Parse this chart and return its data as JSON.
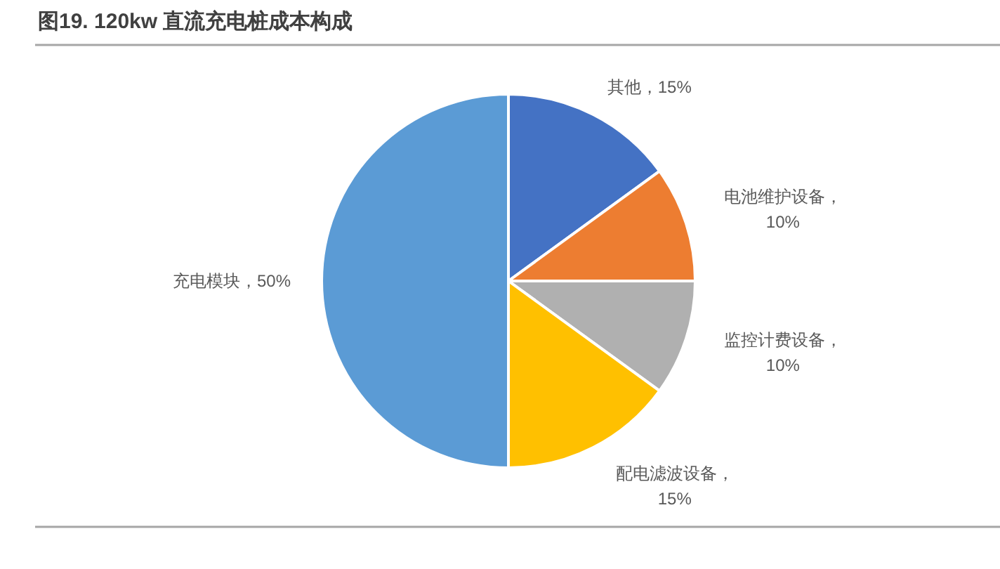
{
  "chart_data": {
    "type": "pie",
    "title": "图19. 120kw 直流充电桩成本构成",
    "categories": [
      "其他，15%",
      "电池维护设备，10%",
      "监控计费设备，10%",
      "配电滤波设备，15%",
      "充电模块，50%"
    ],
    "values": [
      15,
      10,
      10,
      15,
      50
    ],
    "colors": [
      "#4472c4",
      "#ed7d31",
      "#b0b0b0",
      "#ffc000",
      "#5b9bd5"
    ]
  }
}
